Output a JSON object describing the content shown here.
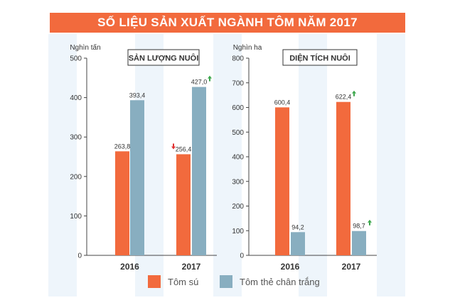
{
  "title": "SỐ LIỆU SẢN XUẤT NGÀNH TÔM NĂM 2017",
  "colors": {
    "tom_su": "#f26a3d",
    "tom_the": "#88aec0",
    "banner": "#f26a3d",
    "arrow_up": "#3aa64a",
    "arrow_down": "#e03030"
  },
  "legend": [
    {
      "label": "Tôm sú",
      "color": "#f26a3d"
    },
    {
      "label": "Tôm thẻ chân trắng",
      "color": "#88aec0"
    }
  ],
  "chart_data": [
    {
      "type": "bar",
      "title": "SẢN LƯỢNG NUÔI",
      "ylabel": "Nghìn tấn",
      "categories": [
        "2016",
        "2017"
      ],
      "ylim": [
        0,
        500
      ],
      "yticks": [
        0,
        100,
        200,
        300,
        400,
        500
      ],
      "series": [
        {
          "name": "Tôm sú",
          "values": [
            263.8,
            256.4
          ],
          "labels": [
            "263,8",
            "256,4"
          ],
          "trend": [
            "",
            "down"
          ]
        },
        {
          "name": "Tôm thẻ chân trắng",
          "values": [
            393.4,
            427.0
          ],
          "labels": [
            "393,4",
            "427,0"
          ],
          "trend": [
            "",
            "up"
          ]
        }
      ]
    },
    {
      "type": "bar",
      "title": "DIỆN TÍCH NUÔI",
      "ylabel": "Nghìn ha",
      "categories": [
        "2016",
        "2017"
      ],
      "ylim": [
        0,
        800
      ],
      "yticks": [
        0,
        100,
        200,
        300,
        400,
        500,
        600,
        700,
        800
      ],
      "series": [
        {
          "name": "Tôm sú",
          "values": [
            600.4,
            622.4
          ],
          "labels": [
            "600,4",
            "622,4"
          ],
          "trend": [
            "",
            "up"
          ]
        },
        {
          "name": "Tôm thẻ chân trắng",
          "values": [
            94.2,
            98.7
          ],
          "labels": [
            "94,2",
            "98,7"
          ],
          "trend": [
            "",
            "up"
          ]
        }
      ]
    }
  ]
}
